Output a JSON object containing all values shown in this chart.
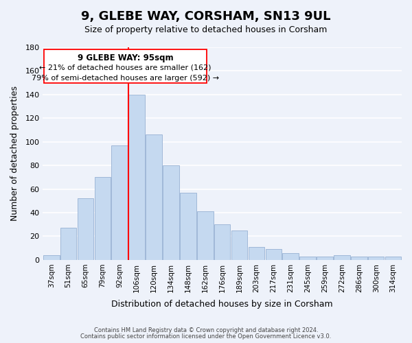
{
  "title": "9, GLEBE WAY, CORSHAM, SN13 9UL",
  "subtitle": "Size of property relative to detached houses in Corsham",
  "xlabel": "Distribution of detached houses by size in Corsham",
  "ylabel": "Number of detached properties",
  "bar_color": "#c5d9f0",
  "bar_edge_color": "#a0b8d8",
  "categories": [
    "37sqm",
    "51sqm",
    "65sqm",
    "79sqm",
    "92sqm",
    "106sqm",
    "120sqm",
    "134sqm",
    "148sqm",
    "162sqm",
    "176sqm",
    "189sqm",
    "203sqm",
    "217sqm",
    "231sqm",
    "245sqm",
    "259sqm",
    "272sqm",
    "286sqm",
    "300sqm",
    "314sqm"
  ],
  "values": [
    4,
    27,
    52,
    70,
    97,
    140,
    106,
    80,
    57,
    41,
    30,
    25,
    11,
    9,
    6,
    3,
    3,
    4,
    3,
    3,
    3
  ],
  "ylim": [
    0,
    180
  ],
  "yticks": [
    0,
    20,
    40,
    60,
    80,
    100,
    120,
    140,
    160,
    180
  ],
  "red_line_x": 4.5,
  "annotation_title": "9 GLEBE WAY: 95sqm",
  "annotation_line1": "← 21% of detached houses are smaller (162)",
  "annotation_line2": "79% of semi-detached houses are larger (592) →",
  "footer_line1": "Contains HM Land Registry data © Crown copyright and database right 2024.",
  "footer_line2": "Contains public sector information licensed under the Open Government Licence v3.0.",
  "background_color": "#eef2fa",
  "grid_color": "#ffffff"
}
